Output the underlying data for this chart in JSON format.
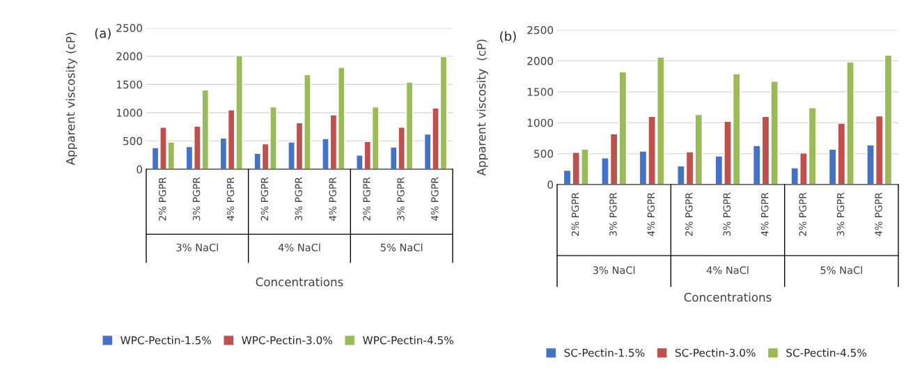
{
  "chart_data": [
    {
      "type": "bar",
      "title": "(a)",
      "ylabel": "Apparent viscosity (cP)",
      "xlabel": "Concentrations",
      "categories": [
        "2% PGPR",
        "3% PGPR",
        "4% PGPR",
        "2% PGPR",
        "3% PGPR",
        "4% PGPR",
        "2% PGPR",
        "3% PGPR",
        "4% PGPR"
      ],
      "annotations": [
        "3% NaCl",
        "4% NaCl",
        "5% NaCl"
      ],
      "series": [
        {
          "name": "WPC-Pectin-1.5%",
          "color": "#4472c4",
          "values": [
            380,
            400,
            550,
            280,
            480,
            540,
            250,
            390,
            620
          ]
        },
        {
          "name": "WPC-Pectin-3.0%",
          "color": "#c0504d",
          "values": [
            740,
            760,
            1050,
            450,
            820,
            960,
            490,
            740,
            1080
          ]
        },
        {
          "name": "WPC-Pectin-4.5%",
          "color": "#9bbb59",
          "values": [
            480,
            1400,
            2010,
            1100,
            1670,
            1800,
            1100,
            1540,
            1990
          ]
        }
      ],
      "ylim": [
        0,
        2500
      ],
      "yticks": [
        0,
        500,
        1000,
        1500,
        2000,
        2500
      ],
      "grid": "y",
      "legend": "bottom"
    },
    {
      "type": "bar",
      "title": "(b)",
      "ylabel": "Apparent viscosity  (cP)",
      "xlabel": "Concentrations",
      "categories": [
        "2% PGPR",
        "3% PGPR",
        "4% PGPR",
        "2% PGPR",
        "3% PGPR",
        "4% PGPR",
        "2% PGPR",
        "3% PGPR",
        "4% PGPR"
      ],
      "annotations": [
        "3% NaCl",
        "4% NaCl",
        "5% NaCl"
      ],
      "series": [
        {
          "name": "SC-Pectin-1.5%",
          "color": "#4472c4",
          "values": [
            230,
            430,
            540,
            300,
            460,
            630,
            270,
            570,
            640
          ]
        },
        {
          "name": "SC-Pectin-3.0%",
          "color": "#c0504d",
          "values": [
            520,
            820,
            1100,
            530,
            1020,
            1100,
            510,
            990,
            1110
          ]
        },
        {
          "name": "SC-Pectin-4.5%",
          "color": "#9bbb59",
          "values": [
            570,
            1820,
            2060,
            1130,
            1790,
            1670,
            1240,
            1980,
            2090
          ]
        }
      ],
      "ylim": [
        0,
        2500
      ],
      "yticks": [
        0,
        500,
        1000,
        1500,
        2000,
        2500
      ],
      "grid": "y",
      "legend": "bottom"
    }
  ]
}
